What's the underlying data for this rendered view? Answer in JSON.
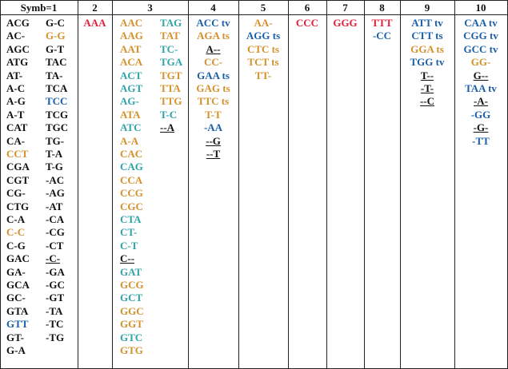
{
  "table": {
    "columns": [
      {
        "header": "Symb=1",
        "lists": [
          [
            {
              "text": "ACG",
              "color": "#111111"
            },
            {
              "text": "AC-",
              "color": "#111111"
            },
            {
              "text": "AGC",
              "color": "#111111"
            },
            {
              "text": "ATG",
              "color": "#111111"
            },
            {
              "text": "AT-",
              "color": "#111111"
            },
            {
              "text": "A-C",
              "color": "#111111"
            },
            {
              "text": "A-G",
              "color": "#111111"
            },
            {
              "text": "A-T",
              "color": "#111111"
            },
            {
              "text": "CAT",
              "color": "#111111"
            },
            {
              "text": "CA-",
              "color": "#111111"
            },
            {
              "text": "CCT",
              "color": "#d4902a"
            },
            {
              "text": "CGA",
              "color": "#111111"
            },
            {
              "text": "CGT",
              "color": "#111111"
            },
            {
              "text": "CG-",
              "color": "#111111"
            },
            {
              "text": "CTG",
              "color": "#111111"
            },
            {
              "text": "C-A",
              "color": "#111111"
            },
            {
              "text": "C-C",
              "color": "#d4902a"
            },
            {
              "text": "C-G",
              "color": "#111111"
            },
            {
              "text": "GAC",
              "color": "#111111"
            },
            {
              "text": "GA-",
              "color": "#111111"
            },
            {
              "text": "GCA",
              "color": "#111111"
            },
            {
              "text": "GC-",
              "color": "#111111"
            },
            {
              "text": "GTA",
              "color": "#111111"
            },
            {
              "text": "GTT",
              "color": "#1a5fa8"
            },
            {
              "text": "GT-",
              "color": "#111111"
            },
            {
              "text": "G-A",
              "color": "#111111"
            }
          ],
          [
            {
              "text": "G-C",
              "color": "#111111"
            },
            {
              "text": "G-G",
              "color": "#d4902a"
            },
            {
              "text": "G-T",
              "color": "#111111"
            },
            {
              "text": "TAC",
              "color": "#111111"
            },
            {
              "text": "TA-",
              "color": "#111111"
            },
            {
              "text": "TCA",
              "color": "#111111"
            },
            {
              "text": "TCC",
              "color": "#1a5fa8"
            },
            {
              "text": "TCG",
              "color": "#111111"
            },
            {
              "text": "TGC",
              "color": "#111111"
            },
            {
              "text": "TG-",
              "color": "#111111"
            },
            {
              "text": "T-A",
              "color": "#111111"
            },
            {
              "text": "T-G",
              "color": "#111111"
            },
            {
              "text": "-AC",
              "color": "#111111"
            },
            {
              "text": "-AG",
              "color": "#111111"
            },
            {
              "text": "-AT",
              "color": "#111111"
            },
            {
              "text": "-CA",
              "color": "#111111"
            },
            {
              "text": "-CG",
              "color": "#111111"
            },
            {
              "text": "-CT",
              "color": "#111111"
            },
            {
              "text": "-C-",
              "color": "#111111",
              "underline": true
            },
            {
              "text": "-GA",
              "color": "#111111"
            },
            {
              "text": "-GC",
              "color": "#111111"
            },
            {
              "text": "-GT",
              "color": "#111111"
            },
            {
              "text": "-TA",
              "color": "#111111"
            },
            {
              "text": "-TC",
              "color": "#111111"
            },
            {
              "text": "-TG",
              "color": "#111111"
            }
          ]
        ]
      },
      {
        "header": "2",
        "lists": [
          [
            {
              "text": "AAA",
              "color": "#e0203a"
            }
          ]
        ]
      },
      {
        "header": "3",
        "lists": [
          [
            {
              "text": "AAC",
              "color": "#d4902a"
            },
            {
              "text": "AAG",
              "color": "#d4902a"
            },
            {
              "text": "AAT",
              "color": "#d4902a"
            },
            {
              "text": "ACA",
              "color": "#d4902a"
            },
            {
              "text": "ACT",
              "color": "#2ea3a8"
            },
            {
              "text": "AGT",
              "color": "#2ea3a8"
            },
            {
              "text": "AG-",
              "color": "#2ea3a8"
            },
            {
              "text": "ATA",
              "color": "#d4902a"
            },
            {
              "text": "ATC",
              "color": "#2ea3a8"
            },
            {
              "text": "A-A",
              "color": "#d4902a"
            },
            {
              "text": "CAC",
              "color": "#d4902a"
            },
            {
              "text": "CAG",
              "color": "#2ea3a8"
            },
            {
              "text": "CCA",
              "color": "#d4902a"
            },
            {
              "text": "CCG",
              "color": "#d4902a"
            },
            {
              "text": "CGC",
              "color": "#d4902a"
            },
            {
              "text": "CTA",
              "color": "#2ea3a8"
            },
            {
              "text": "CT-",
              "color": "#2ea3a8"
            },
            {
              "text": "C-T",
              "color": "#2ea3a8"
            },
            {
              "text": "C--",
              "color": "#111111",
              "underline": true
            },
            {
              "text": "GAT",
              "color": "#2ea3a8"
            },
            {
              "text": "GCG",
              "color": "#d4902a"
            },
            {
              "text": "GCT",
              "color": "#2ea3a8"
            },
            {
              "text": "GGC",
              "color": "#d4902a"
            },
            {
              "text": "GGT",
              "color": "#d4902a"
            },
            {
              "text": "GTC",
              "color": "#2ea3a8"
            },
            {
              "text": "GTG",
              "color": "#d4902a"
            }
          ],
          [
            {
              "text": "TAG",
              "color": "#2ea3a8"
            },
            {
              "text": "TAT",
              "color": "#d4902a"
            },
            {
              "text": "TC-",
              "color": "#2ea3a8"
            },
            {
              "text": "TGA",
              "color": "#2ea3a8"
            },
            {
              "text": "TGT",
              "color": "#d4902a"
            },
            {
              "text": "TTA",
              "color": "#d4902a"
            },
            {
              "text": "TTG",
              "color": "#d4902a"
            },
            {
              "text": "T-C",
              "color": "#2ea3a8"
            },
            {
              "text": "--A",
              "color": "#111111",
              "underline": true
            }
          ]
        ]
      },
      {
        "header": "4",
        "lists": [
          [
            {
              "text": "ACC tv",
              "color": "#1a5fa8"
            },
            {
              "text": "AGA ts",
              "color": "#d4902a"
            },
            {
              "text": "A--",
              "color": "#111111",
              "underline": true
            },
            {
              "text": "CC-",
              "color": "#d4902a"
            },
            {
              "text": "GAA ts",
              "color": "#1a5fa8"
            },
            {
              "text": "GAG ts",
              "color": "#d4902a"
            },
            {
              "text": "TTC ts",
              "color": "#d4902a"
            },
            {
              "text": "T-T",
              "color": "#d4902a"
            },
            {
              "text": "-AA",
              "color": "#1a5fa8"
            },
            {
              "text": "--G",
              "color": "#111111",
              "underline": true
            },
            {
              "text": "--T",
              "color": "#111111",
              "underline": true
            }
          ]
        ]
      },
      {
        "header": "5",
        "lists": [
          [
            {
              "text": "AA-",
              "color": "#d4902a"
            },
            {
              "text": "AGG ts",
              "color": "#1a5fa8"
            },
            {
              "text": "CTC ts",
              "color": "#d4902a"
            },
            {
              "text": "TCT ts",
              "color": "#d4902a"
            },
            {
              "text": "TT-",
              "color": "#d4902a"
            }
          ]
        ]
      },
      {
        "header": "6",
        "lists": [
          [
            {
              "text": "CCC",
              "color": "#e0203a"
            }
          ]
        ]
      },
      {
        "header": "7",
        "lists": [
          [
            {
              "text": "GGG",
              "color": "#e0203a"
            }
          ]
        ]
      },
      {
        "header": "8",
        "lists": [
          [
            {
              "text": "TTT",
              "color": "#e0203a"
            },
            {
              "text": "-CC",
              "color": "#1a5fa8"
            }
          ]
        ]
      },
      {
        "header": "9",
        "lists": [
          [
            {
              "text": "ATT tv",
              "color": "#1a5fa8"
            },
            {
              "text": "CTT ts",
              "color": "#1a5fa8"
            },
            {
              "text": "GGA ts",
              "color": "#d4902a"
            },
            {
              "text": "TGG tv",
              "color": "#1a5fa8"
            },
            {
              "text": "T--",
              "color": "#111111",
              "underline": true
            },
            {
              "text": "-T-",
              "color": "#111111",
              "underline": true
            },
            {
              "text": "--C",
              "color": "#111111",
              "underline": true
            }
          ]
        ]
      },
      {
        "header": "10",
        "lists": [
          [
            {
              "text": "CAA tv",
              "color": "#1a5fa8"
            },
            {
              "text": "CGG tv",
              "color": "#1a5fa8"
            },
            {
              "text": "GCC tv",
              "color": "#1a5fa8"
            },
            {
              "text": "GG-",
              "color": "#d4902a"
            },
            {
              "text": "G--",
              "color": "#111111",
              "underline": true
            },
            {
              "text": "TAA tv",
              "color": "#1a5fa8"
            },
            {
              "text": "-A-",
              "color": "#111111",
              "underline": true
            },
            {
              "text": "-GG",
              "color": "#1a5fa8"
            },
            {
              "text": "-G-",
              "color": "#111111",
              "underline": true
            },
            {
              "text": "-TT",
              "color": "#1a5fa8"
            }
          ]
        ]
      }
    ]
  }
}
